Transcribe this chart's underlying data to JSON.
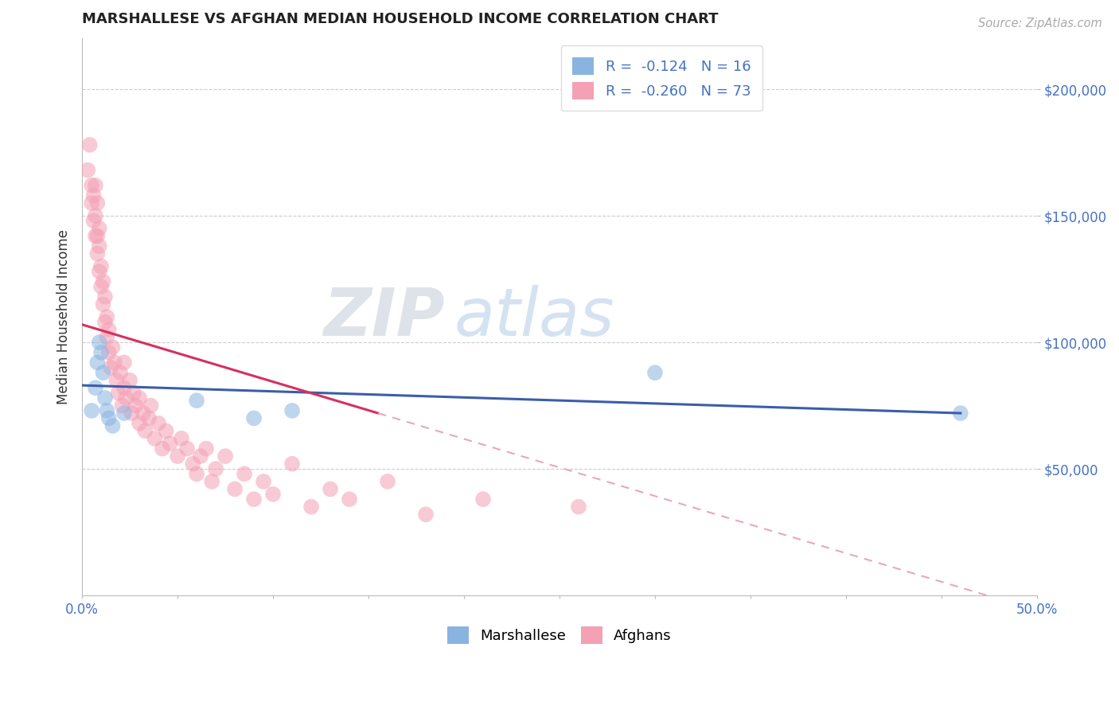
{
  "title": "MARSHALLESE VS AFGHAN MEDIAN HOUSEHOLD INCOME CORRELATION CHART",
  "source_text": "Source: ZipAtlas.com",
  "ylabel": "Median Household Income",
  "xlim": [
    0.0,
    0.5
  ],
  "ylim": [
    0,
    220000
  ],
  "yticks": [
    50000,
    100000,
    150000,
    200000
  ],
  "ytick_labels": [
    "$50,000",
    "$100,000",
    "$150,000",
    "$200,000"
  ],
  "legend_r_marshallese": "R =  -0.124",
  "legend_n_marshallese": "N = 16",
  "legend_r_afghans": "R =  -0.260",
  "legend_n_afghans": "N = 73",
  "color_marshallese": "#8ab4e0",
  "color_afghans": "#f4a0b5",
  "color_line_marshallese": "#3a5eaa",
  "color_line_afghans": "#d63060",
  "color_dashed_afghans": "#e8a8b8",
  "background_color": "#ffffff",
  "grid_color": "#cccccc",
  "watermark_zip": "ZIP",
  "watermark_atlas": "atlas",
  "marshallese_x": [
    0.005,
    0.007,
    0.008,
    0.009,
    0.01,
    0.011,
    0.012,
    0.013,
    0.014,
    0.016,
    0.022,
    0.06,
    0.09,
    0.11,
    0.3,
    0.46
  ],
  "marshallese_y": [
    73000,
    82000,
    92000,
    100000,
    96000,
    88000,
    78000,
    73000,
    70000,
    67000,
    72000,
    77000,
    70000,
    73000,
    88000,
    72000
  ],
  "afghans_x": [
    0.003,
    0.004,
    0.005,
    0.005,
    0.006,
    0.006,
    0.007,
    0.007,
    0.007,
    0.008,
    0.008,
    0.008,
    0.009,
    0.009,
    0.009,
    0.01,
    0.01,
    0.011,
    0.011,
    0.012,
    0.012,
    0.013,
    0.013,
    0.014,
    0.014,
    0.015,
    0.016,
    0.017,
    0.018,
    0.019,
    0.02,
    0.021,
    0.022,
    0.022,
    0.023,
    0.025,
    0.026,
    0.027,
    0.028,
    0.03,
    0.03,
    0.032,
    0.033,
    0.035,
    0.036,
    0.038,
    0.04,
    0.042,
    0.044,
    0.046,
    0.05,
    0.052,
    0.055,
    0.058,
    0.06,
    0.062,
    0.065,
    0.068,
    0.07,
    0.075,
    0.08,
    0.085,
    0.09,
    0.095,
    0.1,
    0.11,
    0.12,
    0.13,
    0.14,
    0.16,
    0.18,
    0.21,
    0.26
  ],
  "afghans_y": [
    168000,
    178000,
    155000,
    162000,
    148000,
    158000,
    142000,
    150000,
    162000,
    135000,
    142000,
    155000,
    128000,
    138000,
    145000,
    122000,
    130000,
    115000,
    124000,
    108000,
    118000,
    102000,
    110000,
    96000,
    105000,
    90000,
    98000,
    92000,
    85000,
    80000,
    88000,
    75000,
    82000,
    92000,
    78000,
    85000,
    72000,
    80000,
    75000,
    68000,
    78000,
    72000,
    65000,
    70000,
    75000,
    62000,
    68000,
    58000,
    65000,
    60000,
    55000,
    62000,
    58000,
    52000,
    48000,
    55000,
    58000,
    45000,
    50000,
    55000,
    42000,
    48000,
    38000,
    45000,
    40000,
    52000,
    35000,
    42000,
    38000,
    45000,
    32000,
    38000,
    35000
  ],
  "line_blue_x0": 0.0,
  "line_blue_x1": 0.46,
  "line_blue_y0": 83000,
  "line_blue_y1": 72000,
  "line_pink_solid_x0": 0.0,
  "line_pink_solid_x1": 0.155,
  "line_pink_y0": 107000,
  "line_pink_y1": 72000,
  "line_pink_dash_x0": 0.155,
  "line_pink_dash_x1": 0.5
}
